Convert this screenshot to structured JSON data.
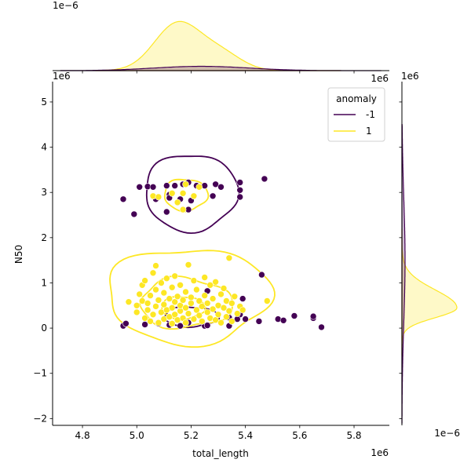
{
  "figure": {
    "xlabel": "total_length",
    "ylabel": "N50",
    "x_offset_label": "1e6",
    "y_offset_label": "1e6",
    "top_marginal_offset_label": "1e−6",
    "right_marginal_offset_label": "1e−6",
    "right_marginal_top_label": "1e6",
    "top_marginal_right_label": "1e6"
  },
  "legend": {
    "title": "anomaly",
    "entries": [
      {
        "label": "-1",
        "color": "#440154"
      },
      {
        "label": "1",
        "color": "#fde725"
      }
    ]
  },
  "chart_data": {
    "type": "scatter",
    "title": "",
    "xlabel": "total_length",
    "ylabel": "N50",
    "x_scale_factor": "1e6",
    "y_scale_factor": "1e6",
    "xlim": [
      4.69,
      5.93
    ],
    "ylim": [
      -2.15,
      5.45
    ],
    "xticks": [
      4.8,
      5.0,
      5.2,
      5.4,
      5.6,
      5.8
    ],
    "yticks": [
      -2,
      -1,
      0,
      1,
      2,
      3,
      4,
      5
    ],
    "xtick_labels": [
      "4.8",
      "5.0",
      "5.2",
      "5.4",
      "5.6",
      "5.8"
    ],
    "ytick_labels": [
      "−2",
      "−1",
      "0",
      "1",
      "2",
      "3",
      "4",
      "5"
    ],
    "legend_title": "anomaly",
    "legend_position": "upper right",
    "grid": false,
    "series": [
      {
        "name": "-1",
        "color": "#440154",
        "points": [
          [
            4.95,
            2.85
          ],
          [
            4.99,
            2.52
          ],
          [
            5.01,
            3.12
          ],
          [
            5.04,
            3.13
          ],
          [
            5.06,
            3.12
          ],
          [
            5.07,
            2.85
          ],
          [
            5.11,
            2.57
          ],
          [
            5.11,
            3.15
          ],
          [
            5.12,
            2.95
          ],
          [
            5.12,
            2.88
          ],
          [
            5.14,
            3.15
          ],
          [
            5.16,
            2.85
          ],
          [
            5.17,
            3.18
          ],
          [
            5.19,
            3.22
          ],
          [
            5.19,
            2.62
          ],
          [
            5.2,
            2.82
          ],
          [
            5.22,
            3.15
          ],
          [
            5.25,
            3.15
          ],
          [
            5.28,
            2.92
          ],
          [
            5.29,
            3.18
          ],
          [
            5.31,
            3.12
          ],
          [
            5.38,
            3.22
          ],
          [
            5.38,
            3.05
          ],
          [
            5.38,
            2.9
          ],
          [
            5.47,
            3.3
          ],
          [
            4.95,
            0.05
          ],
          [
            4.96,
            0.1
          ],
          [
            5.03,
            0.08
          ],
          [
            5.08,
            0.1
          ],
          [
            5.12,
            0.07
          ],
          [
            5.16,
            0.05
          ],
          [
            5.19,
            0.12
          ],
          [
            5.25,
            0.05
          ],
          [
            5.26,
            0.06
          ],
          [
            5.34,
            0.05
          ],
          [
            5.34,
            0.23
          ],
          [
            5.38,
            0.3
          ],
          [
            5.39,
            0.65
          ],
          [
            5.4,
            0.2
          ],
          [
            5.45,
            0.15
          ],
          [
            5.46,
            1.18
          ],
          [
            5.52,
            0.2
          ],
          [
            5.54,
            0.17
          ],
          [
            5.58,
            0.27
          ],
          [
            5.65,
            0.22
          ],
          [
            5.65,
            0.26
          ],
          [
            5.68,
            0.02
          ],
          [
            5.26,
            0.82
          ],
          [
            5.37,
            0.2
          ]
        ]
      },
      {
        "name": "1",
        "color": "#fde725",
        "points": [
          [
            4.97,
            0.58
          ],
          [
            5.0,
            0.35
          ],
          [
            5.0,
            0.5
          ],
          [
            5.01,
            0.75
          ],
          [
            5.02,
            0.6
          ],
          [
            5.02,
            0.95
          ],
          [
            5.03,
            0.22
          ],
          [
            5.03,
            1.05
          ],
          [
            5.04,
            0.4
          ],
          [
            5.04,
            0.55
          ],
          [
            5.05,
            0.15
          ],
          [
            5.05,
            0.72
          ],
          [
            5.06,
            0.3
          ],
          [
            5.06,
            1.22
          ],
          [
            5.07,
            0.48
          ],
          [
            5.07,
            0.85
          ],
          [
            5.07,
            1.38
          ],
          [
            5.08,
            0.12
          ],
          [
            5.08,
            0.62
          ],
          [
            5.09,
            0.35
          ],
          [
            5.09,
            1.0
          ],
          [
            5.1,
            0.2
          ],
          [
            5.1,
            0.52
          ],
          [
            5.1,
            0.78
          ],
          [
            5.11,
            0.4
          ],
          [
            5.11,
            1.1
          ],
          [
            5.12,
            0.25
          ],
          [
            5.12,
            0.65
          ],
          [
            5.13,
            0.1
          ],
          [
            5.13,
            0.45
          ],
          [
            5.13,
            0.9
          ],
          [
            5.14,
            0.3
          ],
          [
            5.14,
            0.58
          ],
          [
            5.14,
            1.15
          ],
          [
            5.15,
            0.18
          ],
          [
            5.15,
            0.7
          ],
          [
            5.16,
            0.38
          ],
          [
            5.16,
            0.5
          ],
          [
            5.16,
            0.95
          ],
          [
            5.17,
            0.22
          ],
          [
            5.17,
            0.62
          ],
          [
            5.18,
            0.12
          ],
          [
            5.18,
            0.45
          ],
          [
            5.18,
            0.8
          ],
          [
            5.19,
            1.4
          ],
          [
            5.19,
            0.32
          ],
          [
            5.2,
            0.55
          ],
          [
            5.2,
            0.68
          ],
          [
            5.21,
            0.2
          ],
          [
            5.21,
            1.05
          ],
          [
            5.22,
            0.4
          ],
          [
            5.22,
            0.85
          ],
          [
            5.23,
            0.28
          ],
          [
            5.23,
            0.6
          ],
          [
            5.24,
            0.15
          ],
          [
            5.24,
            0.48
          ],
          [
            5.25,
            0.72
          ],
          [
            5.25,
            1.12
          ],
          [
            5.26,
            0.35
          ],
          [
            5.26,
            0.55
          ],
          [
            5.27,
            0.22
          ],
          [
            5.27,
            0.95
          ],
          [
            5.28,
            0.42
          ],
          [
            5.28,
            0.65
          ],
          [
            5.29,
            0.18
          ],
          [
            5.29,
            1.02
          ],
          [
            5.3,
            0.5
          ],
          [
            5.3,
            0.3
          ],
          [
            5.31,
            0.75
          ],
          [
            5.31,
            0.12
          ],
          [
            5.32,
            0.45
          ],
          [
            5.32,
            0.88
          ],
          [
            5.33,
            0.25
          ],
          [
            5.33,
            0.6
          ],
          [
            5.34,
            1.55
          ],
          [
            5.34,
            0.38
          ],
          [
            5.35,
            0.55
          ],
          [
            5.35,
            0.15
          ],
          [
            5.36,
            0.7
          ],
          [
            5.37,
            0.32
          ],
          [
            5.38,
            0.48
          ],
          [
            5.39,
            0.4
          ],
          [
            5.48,
            0.6
          ],
          [
            5.06,
            2.92
          ],
          [
            5.08,
            2.9
          ],
          [
            5.13,
            2.98
          ],
          [
            5.15,
            2.78
          ],
          [
            5.17,
            2.98
          ],
          [
            5.18,
            3.18
          ],
          [
            5.21,
            2.92
          ],
          [
            5.23,
            3.12
          ],
          [
            5.17,
            2.62
          ]
        ]
      }
    ],
    "kde_contours": [
      {
        "name": "-1",
        "color": "#440154",
        "levels": 2
      },
      {
        "name": "1",
        "color": "#fde725",
        "levels": 4
      }
    ],
    "marginal_x": {
      "series": [
        {
          "name": "1",
          "color": "#fde725",
          "peak_x": 5.15
        },
        {
          "name": "-1",
          "color": "#440154",
          "peak_x": 5.2
        }
      ]
    },
    "marginal_y": {
      "series": [
        {
          "name": "1",
          "color": "#fde725",
          "peak_y": 0.45
        },
        {
          "name": "-1",
          "color": "#440154",
          "peak_y": 2.95
        }
      ]
    }
  }
}
